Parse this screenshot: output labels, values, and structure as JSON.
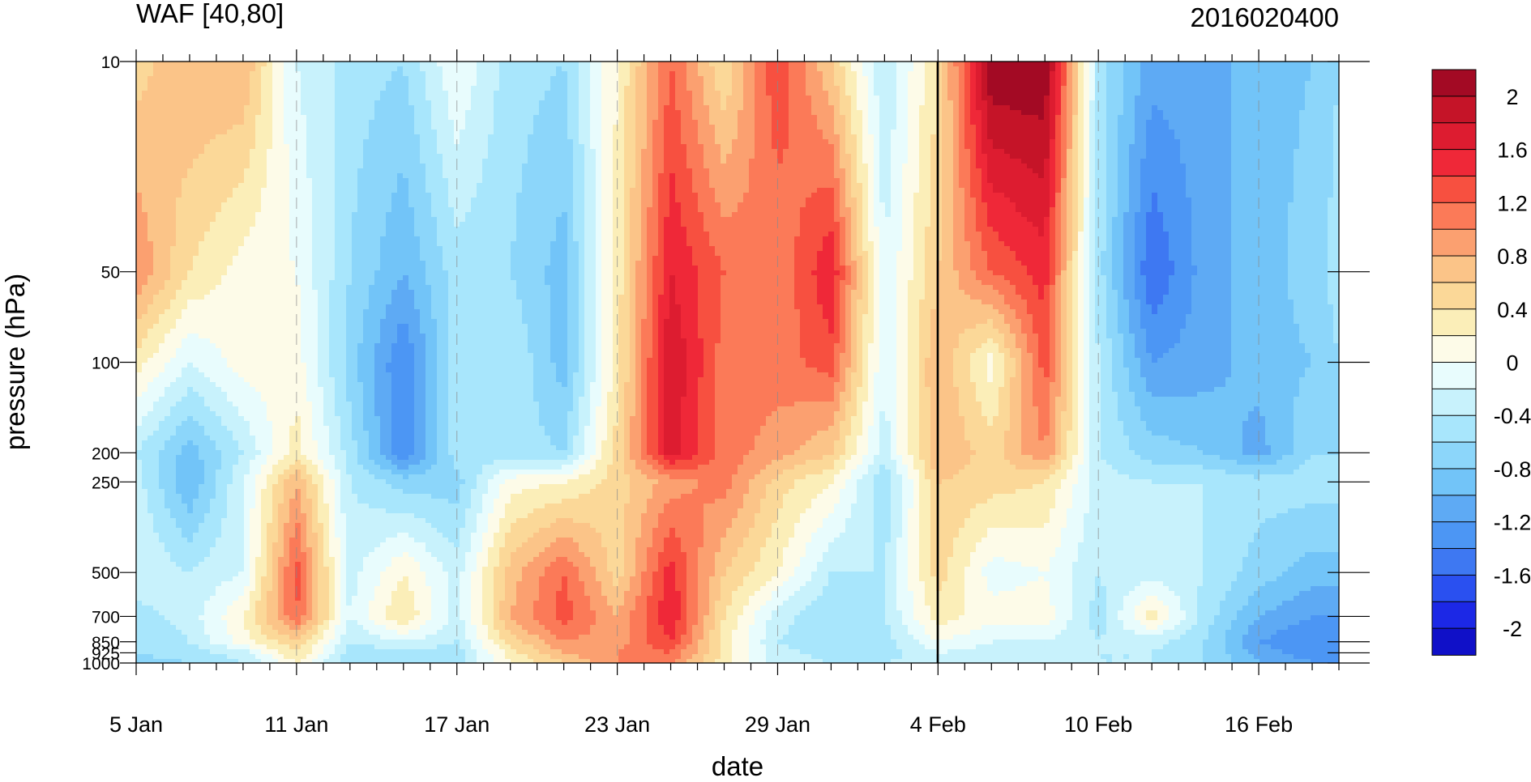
{
  "chart_data": {
    "type": "heatmap",
    "title_left": "WAF [40,80]",
    "title_right": "2016020400",
    "xlabel": "date",
    "ylabel": "pressure (hPa)",
    "x_tick_labels": [
      "5 Jan",
      "11 Jan",
      "17 Jan",
      "23 Jan",
      "29 Jan",
      "4 Feb",
      "10 Feb",
      "16 Feb"
    ],
    "x_tick_dates": [
      "2016-01-05",
      "2016-01-11",
      "2016-01-17",
      "2016-01-23",
      "2016-01-29",
      "2016-02-04",
      "2016-02-10",
      "2016-02-16"
    ],
    "xlim": [
      "2016-01-05",
      "2016-02-19"
    ],
    "y_tick_labels": [
      "10",
      "50",
      "100",
      "200",
      "250",
      "500",
      "700",
      "850",
      "925",
      "1000"
    ],
    "y_tick_values": [
      10,
      50,
      100,
      200,
      250,
      500,
      700,
      850,
      925,
      1000
    ],
    "ylim": [
      1000,
      10
    ],
    "y_scale": "log",
    "y_inverted": true,
    "colorbar": {
      "levels": [
        -2.2,
        -2,
        -1.8,
        -1.6,
        -1.4,
        -1.2,
        -1,
        -0.8,
        -0.6,
        -0.4,
        -0.2,
        0,
        0.2,
        0.4,
        0.6,
        0.8,
        1,
        1.2,
        1.4,
        1.6,
        1.8,
        2,
        2.2
      ],
      "colors": [
        "#1010c8",
        "#1c28e6",
        "#2a50f0",
        "#3e78f2",
        "#4c96f4",
        "#5eaaf4",
        "#72c4f8",
        "#8cd6fa",
        "#a8e6fc",
        "#c8f2fc",
        "#e8fcfd",
        "#fdfbe8",
        "#fbeeb8",
        "#fbd898",
        "#fbc488",
        "#fba070",
        "#fb7a58",
        "#f75040",
        "#ef2838",
        "#dd1c30",
        "#c51428",
        "#a30a24"
      ],
      "tick_labels": [
        "2",
        "1.6",
        "1.2",
        "0.8",
        "0.4",
        "0",
        "-0.4",
        "-0.8",
        "-1.2",
        "-1.6",
        "-2"
      ],
      "tick_values": [
        2,
        1.6,
        1.2,
        0.8,
        0.4,
        0,
        -0.4,
        -0.8,
        -1.2,
        -1.6,
        -2
      ]
    },
    "pressure_levels": [
      10,
      50,
      100,
      200,
      250,
      500,
      700,
      850,
      925,
      1000
    ],
    "dates": [
      "01-05",
      "01-07",
      "01-09",
      "01-11",
      "01-13",
      "01-15",
      "01-17",
      "01-19",
      "01-21",
      "01-23",
      "01-25",
      "01-27",
      "01-29",
      "01-31",
      "02-02",
      "02-04",
      "02-06",
      "02-08",
      "02-10",
      "02-12",
      "02-14",
      "02-16",
      "02-18",
      "02-19"
    ],
    "values": [
      [
        0.5,
        0.8,
        0.8,
        -0.2,
        -0.5,
        -0.6,
        0.0,
        -0.5,
        -0.6,
        0.2,
        1.2,
        0.4,
        1.4,
        0.6,
        -0.4,
        0.4,
        2.2,
        2.2,
        -0.5,
        -1.1,
        -1.1,
        -0.9,
        -0.8,
        -0.6
      ],
      [
        1.0,
        0.4,
        0.1,
        0.0,
        -0.6,
        -1.0,
        -0.5,
        -0.6,
        -0.9,
        0.3,
        1.6,
        1.2,
        1.0,
        1.6,
        -0.2,
        0.6,
        1.2,
        1.5,
        -0.5,
        -1.6,
        -1.1,
        -0.9,
        -0.7,
        -0.5
      ],
      [
        0.3,
        -0.2,
        0.1,
        0.1,
        -0.7,
        -1.4,
        -0.5,
        -0.4,
        -0.9,
        0.3,
        1.8,
        1.1,
        1.1,
        1.3,
        -0.2,
        0.8,
        0.1,
        1.3,
        -0.4,
        -1.2,
        -1.1,
        -0.9,
        -0.8,
        -0.6
      ],
      [
        -0.4,
        -0.9,
        -0.4,
        0.3,
        -0.5,
        -1.4,
        -0.5,
        -0.5,
        -0.6,
        0.5,
        1.7,
        1.1,
        0.9,
        0.6,
        -0.3,
        0.8,
        0.5,
        1.0,
        -0.4,
        -0.7,
        -0.8,
        -1.1,
        -0.6,
        -0.6
      ],
      [
        -0.3,
        -1.0,
        -0.2,
        0.8,
        -0.4,
        -0.7,
        -0.7,
        0.1,
        0.2,
        0.5,
        0.9,
        1.1,
        0.5,
        0.2,
        -0.6,
        0.6,
        0.5,
        0.4,
        -0.3,
        -0.4,
        -0.4,
        -0.5,
        -0.5,
        -0.5
      ],
      [
        -0.2,
        -0.4,
        -0.2,
        1.3,
        -0.3,
        0.2,
        -0.3,
        0.7,
        1.2,
        0.5,
        1.5,
        0.6,
        0.2,
        -0.4,
        -0.4,
        0.5,
        -0.1,
        0.0,
        -0.4,
        -0.3,
        -0.4,
        -0.7,
        -0.9,
        -0.9
      ],
      [
        -0.5,
        -0.3,
        0.2,
        1.2,
        -0.2,
        0.4,
        -0.3,
        0.8,
        1.3,
        0.8,
        1.6,
        0.4,
        -0.3,
        -0.6,
        -0.4,
        0.3,
        0.1,
        0.1,
        -0.5,
        0.3,
        -0.5,
        -1.0,
        -1.2,
        -1.2
      ],
      [
        -0.6,
        -0.4,
        0.1,
        0.6,
        -0.4,
        -0.2,
        -0.4,
        0.5,
        1.0,
        0.9,
        1.4,
        0.3,
        -0.4,
        -0.6,
        -0.5,
        0.0,
        -0.2,
        -0.2,
        -0.4,
        -0.3,
        -0.6,
        -1.2,
        -1.4,
        -1.4
      ],
      [
        -0.6,
        -0.5,
        -0.3,
        0.4,
        -0.5,
        -0.5,
        -0.5,
        0.3,
        0.8,
        1.0,
        1.2,
        0.3,
        -0.3,
        -0.5,
        -0.5,
        -0.2,
        -0.3,
        -0.3,
        -0.4,
        -0.4,
        -0.6,
        -1.1,
        -1.3,
        -1.3
      ],
      [
        -0.7,
        -0.6,
        -0.4,
        0.2,
        -0.6,
        -0.6,
        -0.5,
        0.2,
        0.6,
        1.0,
        1.0,
        0.3,
        -0.3,
        -0.4,
        -0.4,
        -0.3,
        -0.3,
        -0.3,
        -0.4,
        -0.4,
        -0.6,
        -1.0,
        -1.2,
        -1.2
      ]
    ]
  }
}
